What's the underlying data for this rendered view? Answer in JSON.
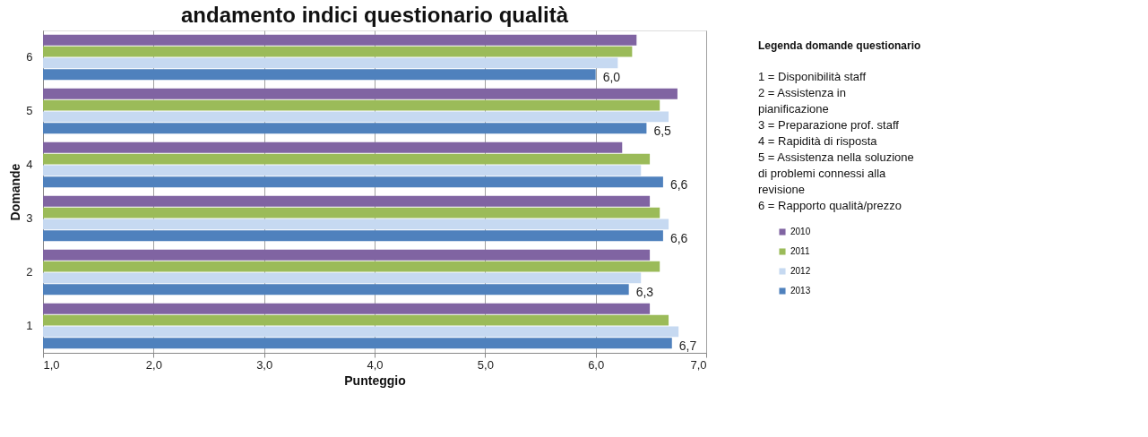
{
  "chart_data": {
    "type": "bar",
    "orientation": "horizontal",
    "title": "andamento indici questionario qualità",
    "xlabel": "Punteggio",
    "ylabel": "Domande",
    "categories": [
      "6",
      "5",
      "4",
      "3",
      "2",
      "1"
    ],
    "series": [
      {
        "name": "2010",
        "color": "#8064a2",
        "values": [
          6.37,
          6.74,
          6.24,
          6.49,
          6.49,
          6.49
        ]
      },
      {
        "name": "2011",
        "color": "#9bbb59",
        "values": [
          6.33,
          6.58,
          6.49,
          6.58,
          6.58,
          6.66
        ]
      },
      {
        "name": "2012",
        "color": "#c6d9f1",
        "values": [
          6.2,
          6.66,
          6.41,
          6.66,
          6.41,
          6.75
        ]
      },
      {
        "name": "2013",
        "color": "#4f81bd",
        "values": [
          6.0,
          6.46,
          6.61,
          6.61,
          6.3,
          6.69
        ],
        "value_labels": [
          "6,0",
          "6,5",
          "6,6",
          "6,6",
          "6,3",
          "6,7"
        ]
      }
    ],
    "xlim": [
      1,
      7
    ],
    "xticks": [
      {
        "value": 1,
        "label": "1,0"
      },
      {
        "value": 2,
        "label": "2,0"
      },
      {
        "value": 3,
        "label": "3,0"
      },
      {
        "value": 4,
        "label": "4,0"
      },
      {
        "value": 5,
        "label": "5,0"
      },
      {
        "value": 6,
        "label": "6,0"
      },
      {
        "value": 7,
        "label": "7,0"
      }
    ],
    "grid": "x",
    "legend": "right",
    "annotations": [
      "Legenda domande questionario",
      "1 =  Disponibilità staff",
      "2 =  Assistenza in pianificazione",
      "3 =  Preparazione prof. staff",
      "4 =  Rapidità di risposta",
      "5 =  Assistenza nella soluzione di problemi connessi alla revisione",
      "6 =  Rapporto qualità/prezzo"
    ]
  }
}
